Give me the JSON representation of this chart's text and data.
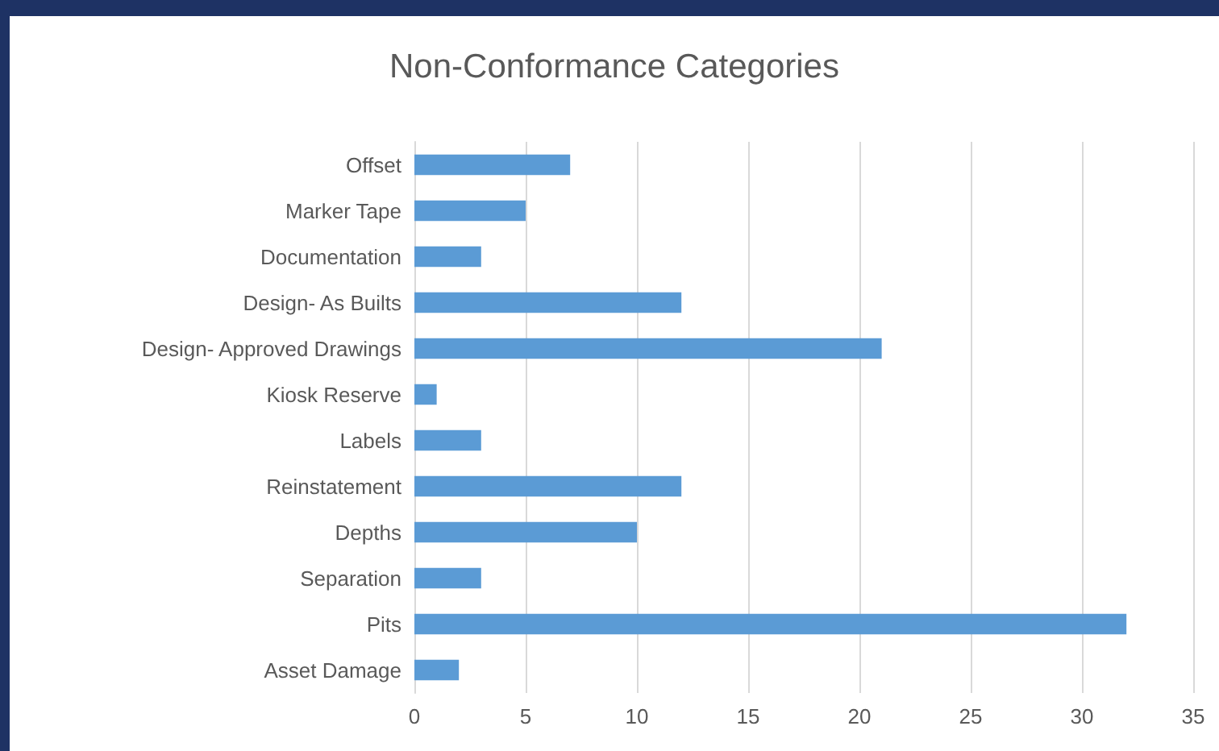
{
  "chart_data": {
    "type": "bar",
    "orientation": "horizontal",
    "title": "Non-Conformance Categories",
    "categories": [
      "Offset",
      "Marker Tape",
      "Documentation",
      "Design- As Builts",
      "Design- Approved Drawings",
      "Kiosk Reserve",
      "Labels",
      "Reinstatement",
      "Depths",
      "Separation",
      "Pits",
      "Asset Damage"
    ],
    "values": [
      7,
      5,
      3,
      12,
      21,
      1,
      3,
      12,
      10,
      3,
      32,
      2
    ],
    "color": "#5b9bd5",
    "xlim": [
      0,
      35
    ],
    "xticks": [
      0,
      5,
      10,
      15,
      20,
      25,
      30,
      35
    ],
    "grid": "x"
  }
}
